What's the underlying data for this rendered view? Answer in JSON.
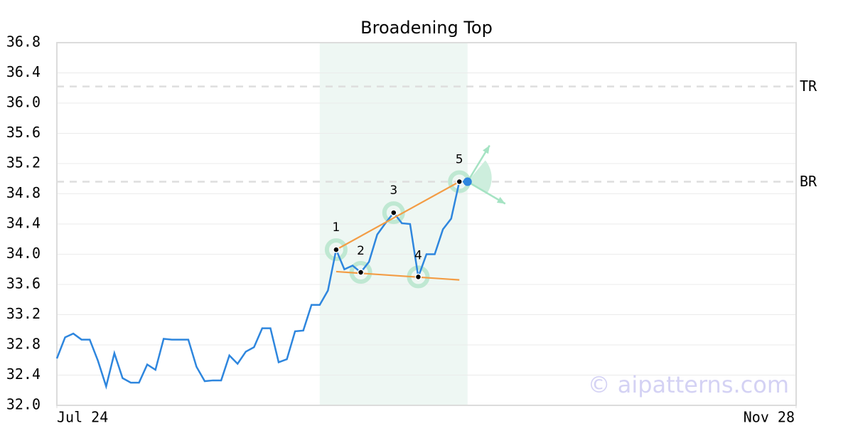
{
  "chart_data": {
    "type": "line",
    "title": "Broadening Top",
    "x": [
      0,
      1,
      2,
      3,
      4,
      5,
      6,
      7,
      8,
      9,
      10,
      11,
      12,
      13,
      14,
      15,
      16,
      17,
      18,
      19,
      20,
      21,
      22,
      23,
      24,
      25,
      26,
      27,
      28,
      29,
      30,
      31,
      32,
      33,
      34,
      35,
      36,
      37,
      38,
      39,
      40,
      41,
      42,
      43,
      44,
      45,
      46,
      47,
      48,
      49,
      50
    ],
    "values": [
      32.62,
      32.9,
      32.95,
      32.87,
      32.87,
      32.59,
      32.25,
      32.69,
      32.36,
      32.3,
      32.3,
      32.54,
      32.47,
      32.88,
      32.87,
      32.87,
      32.87,
      32.51,
      32.32,
      32.33,
      32.33,
      32.66,
      32.55,
      32.71,
      32.77,
      33.02,
      33.02,
      32.57,
      32.61,
      32.98,
      32.99,
      33.33,
      33.33,
      33.52,
      34.06,
      33.8,
      33.85,
      33.76,
      33.9,
      34.26,
      34.41,
      34.55,
      34.41,
      34.4,
      33.7,
      34.0,
      34.0,
      34.33,
      34.47,
      34.96,
      34.96
    ],
    "color": "#2e86de",
    "xlim": [
      0,
      90
    ],
    "xticks": [
      {
        "value": 0,
        "label": "Jul 24"
      },
      {
        "value": 90,
        "label": "Nov 28"
      }
    ],
    "ylim": [
      32,
      36.8
    ],
    "yticks": [
      {
        "value": 32,
        "label": "32.0"
      },
      32.4,
      32.8,
      33.2,
      33.6,
      {
        "value": 34,
        "label": "34.0"
      },
      34.4,
      34.8,
      35.2,
      35.6,
      {
        "value": 36,
        "label": "36.0"
      },
      36.4,
      36.8
    ],
    "grid": true,
    "highlight_range": [
      32,
      50
    ],
    "pattern_points": [
      {
        "index": 34,
        "label": "1"
      },
      {
        "index": 37,
        "label": "2"
      },
      {
        "index": 41,
        "label": "3"
      },
      {
        "index": 44,
        "label": "4"
      },
      {
        "index": 49,
        "label": "5"
      }
    ],
    "trendlines": [
      {
        "x": [
          34,
          49
        ],
        "y": [
          34.06,
          34.96
        ],
        "color": "#f39c44"
      },
      {
        "x": [
          34,
          49
        ],
        "y": [
          33.77,
          33.66
        ],
        "color": "#f39c44"
      }
    ],
    "levels": [
      {
        "label": "TR",
        "value": 36.22
      },
      {
        "label": "BR",
        "value": 34.96
      }
    ],
    "watermark": "© aipatterns.com"
  }
}
